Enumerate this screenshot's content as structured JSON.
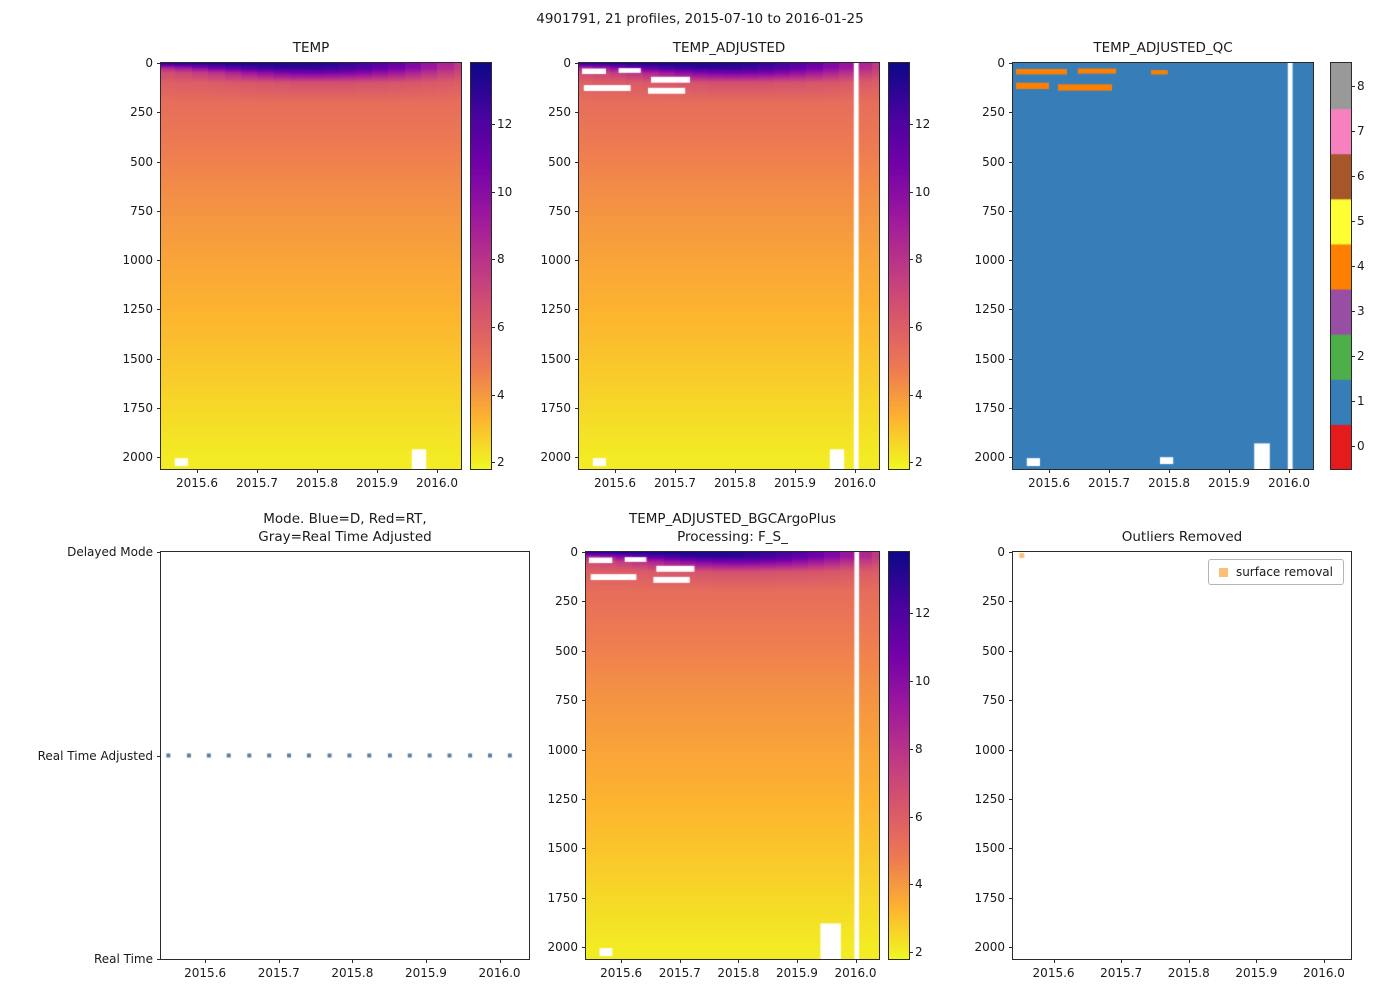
{
  "figure": {
    "title": "4901791, 21 profiles, 2015-07-10 to 2016-01-25",
    "background": "#ffffff"
  },
  "colors": {
    "plasma_stops": [
      "#0d0887",
      "#46039f",
      "#7201a8",
      "#9c179e",
      "#bd3786",
      "#d8576b",
      "#ed7953",
      "#fdb42f",
      "#f0f921"
    ],
    "qc_palette": [
      "#e41a1c",
      "#377eb8",
      "#4daf4a",
      "#984ea3",
      "#ff7f00",
      "#ffff33",
      "#a65628",
      "#f781bf",
      "#999999"
    ],
    "mode_dot": "#557fa3",
    "outlier_marker": "#fcbf75",
    "missing_color": "#ffffff"
  },
  "chart_data": [
    {
      "id": "temp",
      "type": "heatmap",
      "title": "TEMP",
      "xlabel": "",
      "ylabel": "",
      "xlim": [
        2015.54,
        2016.04
      ],
      "ylim": [
        0,
        2060
      ],
      "xticks": [
        2015.6,
        2015.7,
        2015.8,
        2015.9,
        2016.0
      ],
      "yticks": [
        0,
        250,
        500,
        750,
        1000,
        1250,
        1500,
        1750,
        2000
      ],
      "colorbar": {
        "colormap": "plasma_r",
        "vmin": 1.8,
        "vmax": 13.8,
        "ticks": [
          2,
          4,
          6,
          8,
          10,
          12
        ]
      },
      "x": [
        2015.523,
        2015.55,
        2015.578,
        2015.605,
        2015.632,
        2015.66,
        2015.687,
        2015.714,
        2015.741,
        2015.769,
        2015.796,
        2015.823,
        2015.851,
        2015.878,
        2015.905,
        2015.932,
        2015.96,
        2015.987,
        2016.014,
        2016.042,
        2016.069
      ],
      "depths": [
        0,
        25,
        50,
        100,
        200,
        400,
        700,
        1000,
        1400,
        2000
      ],
      "values": [
        [
          13.3,
          13.4,
          13.5,
          13.6,
          13.6,
          13.6,
          13.6,
          13.5,
          13.5,
          13.4,
          13.3,
          13.1,
          12.8,
          12.4,
          11.9,
          11.2,
          10.4,
          9.5,
          8.6,
          7.7,
          7.0
        ],
        [
          8.0,
          8.6,
          9.3,
          10.1,
          10.9,
          11.6,
          12.2,
          12.6,
          12.8,
          12.9,
          12.8,
          12.6,
          12.3,
          11.9,
          11.4,
          10.8,
          10.1,
          9.3,
          8.4,
          7.6,
          6.9
        ],
        [
          6.6,
          6.8,
          7.1,
          7.5,
          8.0,
          8.6,
          9.2,
          9.8,
          10.3,
          10.6,
          10.7,
          10.6,
          10.4,
          10.1,
          9.7,
          9.2,
          8.7,
          8.1,
          7.5,
          7.0,
          6.6
        ],
        [
          5.9,
          5.9,
          6.0,
          6.0,
          6.1,
          6.2,
          6.3,
          6.4,
          6.5,
          6.6,
          6.6,
          6.6,
          6.6,
          6.5,
          6.5,
          6.4,
          6.3,
          6.2,
          6.1,
          6.0,
          6.0
        ],
        [
          5.3
        ],
        [
          4.8
        ],
        [
          4.2
        ],
        [
          3.7
        ],
        [
          3.1
        ],
        [
          2.1
        ]
      ],
      "missing": [
        {
          "x0": 2015.563,
          "x1": 2015.585,
          "y0": 2005,
          "y1": 2045
        },
        {
          "x0": 2015.958,
          "x1": 2015.982,
          "y0": 1960,
          "y1": 2060
        }
      ]
    },
    {
      "id": "adj",
      "type": "heatmap",
      "title": "TEMP_ADJUSTED",
      "xlim": [
        2015.54,
        2016.04
      ],
      "ylim": [
        0,
        2060
      ],
      "xticks": [
        2015.6,
        2015.7,
        2015.8,
        2015.9,
        2016.0
      ],
      "yticks": [
        0,
        250,
        500,
        750,
        1000,
        1250,
        1500,
        1750,
        2000
      ],
      "colorbar": {
        "colormap": "plasma_r",
        "vmin": 1.8,
        "vmax": 13.8,
        "ticks": [
          2,
          4,
          6,
          8,
          10,
          12
        ]
      },
      "values_from": "temp",
      "missing": [
        {
          "x0": 2015.545,
          "x1": 2015.585,
          "y0": 28,
          "y1": 56
        },
        {
          "x0": 2015.606,
          "x1": 2015.643,
          "y0": 26,
          "y1": 50
        },
        {
          "x0": 2015.548,
          "x1": 2015.626,
          "y0": 112,
          "y1": 142
        },
        {
          "x0": 2015.66,
          "x1": 2015.725,
          "y0": 70,
          "y1": 100
        },
        {
          "x0": 2015.655,
          "x1": 2015.717,
          "y0": 126,
          "y1": 156
        },
        {
          "x0": 2015.998,
          "x1": 2016.006,
          "y0": 0,
          "y1": 2060
        },
        {
          "x0": 2015.563,
          "x1": 2015.585,
          "y0": 2005,
          "y1": 2045
        },
        {
          "x0": 2015.958,
          "x1": 2015.982,
          "y0": 1960,
          "y1": 2060
        }
      ]
    },
    {
      "id": "qc",
      "type": "qc_heatmap",
      "title": "TEMP_ADJUSTED_QC",
      "xlim": [
        2015.54,
        2016.04
      ],
      "ylim": [
        0,
        2060
      ],
      "xticks": [
        2015.6,
        2015.7,
        2015.8,
        2015.9,
        2016.0
      ],
      "yticks": [
        0,
        250,
        500,
        750,
        1000,
        1250,
        1500,
        1750,
        2000
      ],
      "base_value": 1,
      "segments": [
        {
          "value": 4,
          "x0": 2015.545,
          "x1": 2015.63,
          "y0": 30,
          "y1": 58
        },
        {
          "value": 4,
          "x0": 2015.648,
          "x1": 2015.712,
          "y0": 28,
          "y1": 54
        },
        {
          "value": 4,
          "x0": 2015.545,
          "x1": 2015.6,
          "y0": 100,
          "y1": 132
        },
        {
          "value": 4,
          "x0": 2015.615,
          "x1": 2015.705,
          "y0": 108,
          "y1": 140
        },
        {
          "value": 4,
          "x0": 2015.77,
          "x1": 2015.798,
          "y0": 36,
          "y1": 58
        }
      ],
      "missing": [
        {
          "x0": 2015.998,
          "x1": 2016.006,
          "y0": 0,
          "y1": 2060
        },
        {
          "x0": 2015.563,
          "x1": 2015.585,
          "y0": 2005,
          "y1": 2045
        },
        {
          "x0": 2015.785,
          "x1": 2015.807,
          "y0": 2000,
          "y1": 2035
        },
        {
          "x0": 2015.942,
          "x1": 2015.968,
          "y0": 1930,
          "y1": 2060
        }
      ],
      "colorbar": {
        "discrete": true,
        "ticks": [
          0,
          1,
          2,
          3,
          4,
          5,
          6,
          7,
          8
        ]
      }
    },
    {
      "id": "mode",
      "type": "category_scatter",
      "title": "Mode. Blue=D, Red=RT,\nGray=Real Time Adjusted",
      "xlim": [
        2015.54,
        2016.04
      ],
      "xticks": [
        2015.6,
        2015.7,
        2015.8,
        2015.9,
        2016.0
      ],
      "categories": [
        "Delayed Mode",
        "Real Time Adjusted",
        "Real Time"
      ],
      "points": {
        "category": "Real Time Adjusted",
        "x": [
          2015.523,
          2015.55,
          2015.578,
          2015.605,
          2015.632,
          2015.66,
          2015.687,
          2015.714,
          2015.741,
          2015.769,
          2015.796,
          2015.823,
          2015.851,
          2015.878,
          2015.905,
          2015.932,
          2015.96,
          2015.987,
          2016.014,
          2016.042,
          2016.069
        ]
      }
    },
    {
      "id": "bgc",
      "type": "heatmap",
      "title": "TEMP_ADJUSTED_BGCArgoPlus\nProcessing: F_S_",
      "xlim": [
        2015.54,
        2016.04
      ],
      "ylim": [
        0,
        2060
      ],
      "xticks": [
        2015.6,
        2015.7,
        2015.8,
        2015.9,
        2016.0
      ],
      "yticks": [
        0,
        250,
        500,
        750,
        1000,
        1250,
        1500,
        1750,
        2000
      ],
      "colorbar": {
        "colormap": "plasma_r",
        "vmin": 1.8,
        "vmax": 13.8,
        "ticks": [
          2,
          4,
          6,
          8,
          10,
          12
        ]
      },
      "values_from": "temp",
      "missing": [
        {
          "x0": 2015.545,
          "x1": 2015.585,
          "y0": 28,
          "y1": 56
        },
        {
          "x0": 2015.606,
          "x1": 2015.643,
          "y0": 26,
          "y1": 50
        },
        {
          "x0": 2015.548,
          "x1": 2015.626,
          "y0": 112,
          "y1": 142
        },
        {
          "x0": 2015.66,
          "x1": 2015.725,
          "y0": 70,
          "y1": 100
        },
        {
          "x0": 2015.655,
          "x1": 2015.717,
          "y0": 126,
          "y1": 156
        },
        {
          "x0": 2015.998,
          "x1": 2016.006,
          "y0": 0,
          "y1": 2060
        },
        {
          "x0": 2015.563,
          "x1": 2015.585,
          "y0": 2005,
          "y1": 2045
        },
        {
          "x0": 2015.94,
          "x1": 2015.975,
          "y0": 1880,
          "y1": 2060
        }
      ]
    },
    {
      "id": "outliers",
      "type": "scatter",
      "title": "Outliers Removed",
      "xlim": [
        2015.54,
        2016.04
      ],
      "ylim": [
        0,
        2060
      ],
      "xticks": [
        2015.6,
        2015.7,
        2015.8,
        2015.9,
        2016.0
      ],
      "yticks": [
        0,
        250,
        500,
        750,
        1000,
        1250,
        1500,
        1750,
        2000
      ],
      "legend": [
        {
          "label": "surface removal",
          "marker_color": "#fcbf75"
        }
      ],
      "points": [
        {
          "x": 2015.553,
          "y": 18
        }
      ]
    }
  ]
}
